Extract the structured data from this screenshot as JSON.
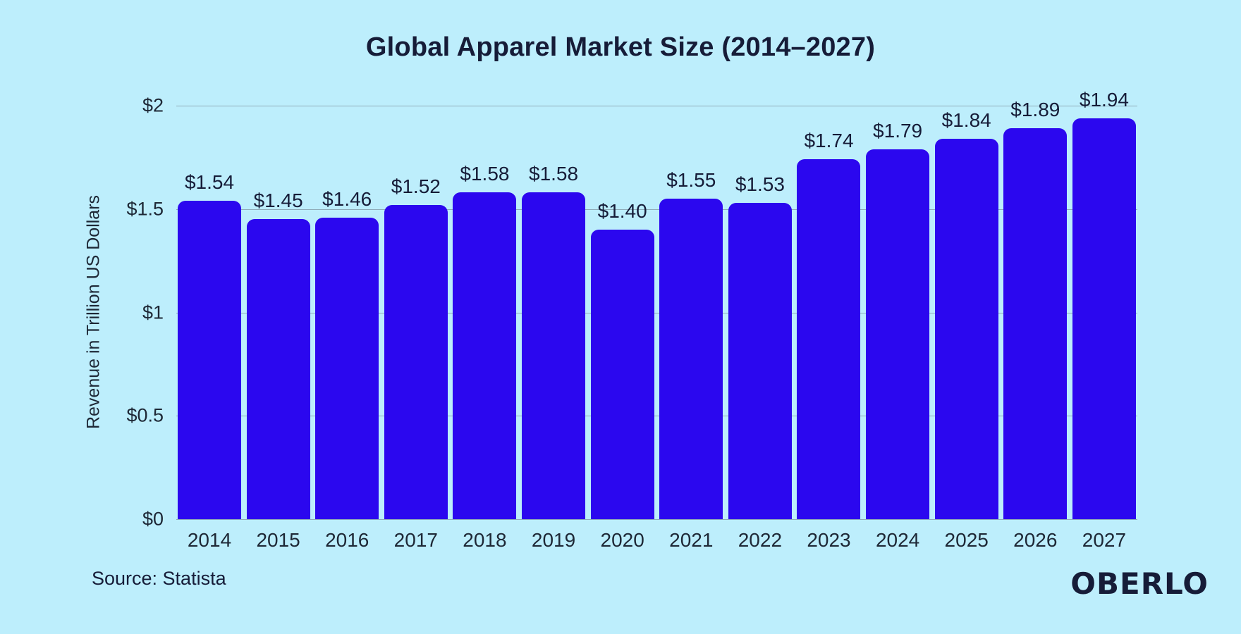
{
  "title": "Global Apparel Market Size (2014–2027)",
  "source_text": "Source: Statista",
  "logo_text": "OBERLO",
  "colors": {
    "background": "#BDEEFC",
    "bar": "#2B07EF",
    "gridline": "#8FABB8",
    "title_text": "#161C38",
    "axis_text": "#1E2836"
  },
  "chart_data": {
    "type": "bar",
    "title": "Global Apparel Market Size (2014–2027)",
    "xlabel": "",
    "ylabel": "Revenue in Trillion US Dollars",
    "categories": [
      "2014",
      "2015",
      "2016",
      "2017",
      "2018",
      "2019",
      "2020",
      "2021",
      "2022",
      "2023",
      "2024",
      "2025",
      "2026",
      "2027"
    ],
    "values": [
      1.54,
      1.45,
      1.46,
      1.52,
      1.58,
      1.58,
      1.4,
      1.55,
      1.53,
      1.74,
      1.79,
      1.84,
      1.89,
      1.94
    ],
    "value_labels": [
      "$1.54",
      "$1.45",
      "$1.46",
      "$1.52",
      "$1.58",
      "$1.58",
      "$1.40",
      "$1.55",
      "$1.53",
      "$1.74",
      "$1.79",
      "$1.84",
      "$1.89",
      "$1.94"
    ],
    "ylim": [
      0,
      2
    ],
    "yticks": [
      0,
      0.5,
      1,
      1.5,
      2
    ],
    "ytick_labels": [
      "$0",
      "$0.5",
      "$1",
      "$1.5",
      "$2"
    ],
    "grid": "horizontal",
    "legend": "none",
    "units": "Trillion US Dollars"
  }
}
